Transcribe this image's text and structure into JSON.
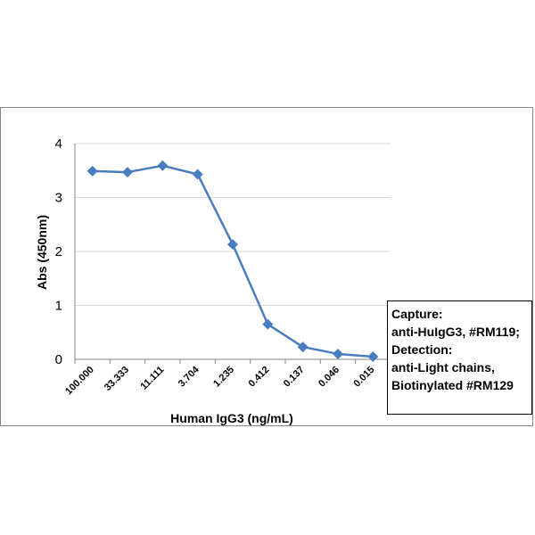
{
  "chart_data": {
    "type": "line",
    "title": "",
    "xlabel": "Human IgG3 (ng/mL)",
    "ylabel": "Abs (450nm)",
    "categories": [
      "100.000",
      "33.333",
      "11.111",
      "3.704",
      "1.235",
      "0.412",
      "0.137",
      "0.046",
      "0.015"
    ],
    "series": [
      {
        "values": [
          3.49,
          3.47,
          3.59,
          3.43,
          2.13,
          0.65,
          0.23,
          0.1,
          0.05
        ],
        "color": "#4a7dbf",
        "marker": "diamond"
      }
    ],
    "ylim": [
      0,
      4
    ],
    "yticks": [
      "0",
      "1",
      "2",
      "3",
      "4"
    ],
    "grid": true,
    "legend_placement": "right",
    "legend_lines": [
      "Capture:",
      "anti-HuIgG3, #RM119;",
      "Detection:",
      "anti-Light chains,",
      "Biotinylated #RM129"
    ]
  }
}
